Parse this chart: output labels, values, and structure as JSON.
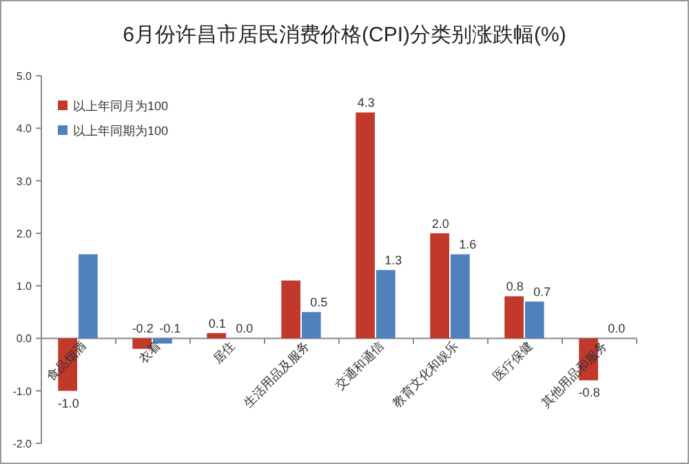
{
  "chart_data": {
    "type": "bar",
    "title": "6月份许昌市居民消费价格(CPI)分类别涨跌幅(%)",
    "categories": [
      "食品烟酒",
      "衣着",
      "居住",
      "生活用品及服务",
      "交通和通信",
      "教育文化和娱乐",
      "医疗保健",
      "其他用品和服务"
    ],
    "series": [
      {
        "name": "以上年同月为100",
        "color": "#c0392b",
        "values": [
          -1.0,
          -0.2,
          0.1,
          1.1,
          4.3,
          2.0,
          0.8,
          -0.8
        ],
        "value_labels": [
          "-1.0",
          "-0.2",
          "0.1",
          null,
          "4.3",
          "2.0",
          "0.8",
          "-0.8"
        ]
      },
      {
        "name": "以上年同期为100",
        "color": "#4f81bd",
        "values": [
          1.6,
          -0.1,
          0.0,
          0.5,
          1.3,
          1.6,
          0.7,
          0.0
        ],
        "value_labels": [
          null,
          "-0.1",
          "0.0",
          "0.5",
          "1.3",
          "1.6",
          "0.7",
          "0.0"
        ]
      }
    ],
    "ylim": [
      -2,
      5
    ],
    "yticks": [
      {
        "value": -2,
        "label": "-2.0"
      },
      {
        "value": -1,
        "label": "-1.0"
      },
      {
        "value": 0,
        "label": "0.0"
      },
      {
        "value": 1,
        "label": "1.0"
      },
      {
        "value": 2,
        "label": "2.0"
      },
      {
        "value": 3,
        "label": "3.0"
      },
      {
        "value": 4,
        "label": "4.0"
      },
      {
        "value": 5,
        "label": "5.0"
      }
    ],
    "grid": false,
    "legend": "top left"
  }
}
